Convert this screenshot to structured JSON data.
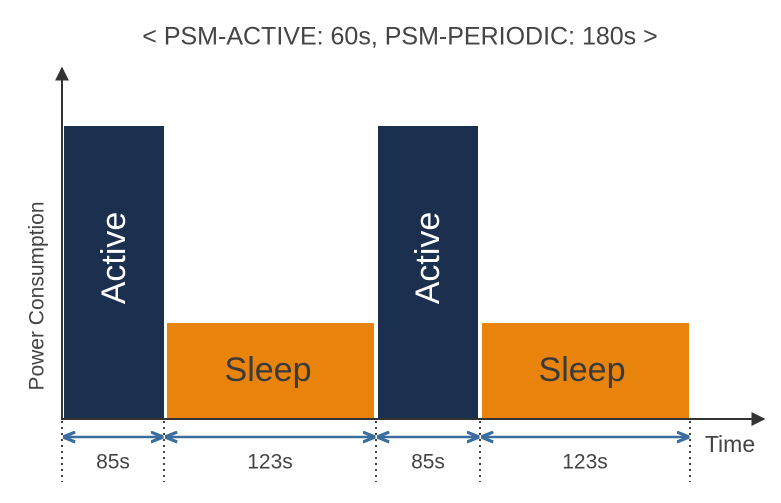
{
  "title": "< PSM-ACTIVE: 60s, PSM-PERIODIC: 180s >",
  "axes": {
    "y_label": "Power Consumption",
    "x_label": "Time"
  },
  "blocks": [
    {
      "label": "Active"
    },
    {
      "label": "Sleep"
    },
    {
      "label": "Active"
    },
    {
      "label": "Sleep"
    }
  ],
  "durations": [
    "85s",
    "123s",
    "85s",
    "123s"
  ]
}
